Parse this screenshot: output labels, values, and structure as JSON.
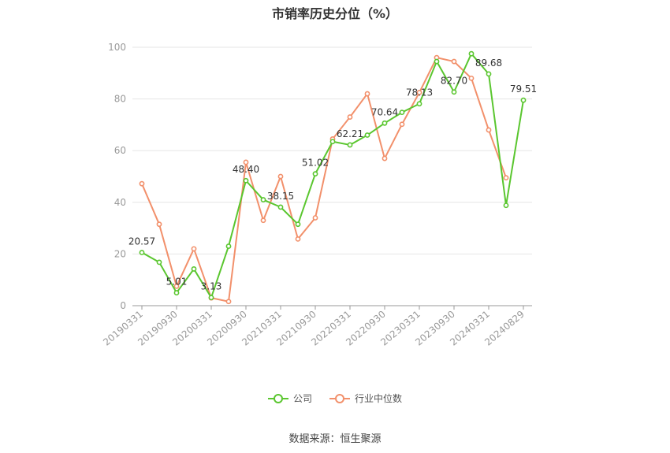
{
  "chart_data": {
    "type": "line",
    "title": "市销率历史分位（%）",
    "source": "数据来源：恒生聚源",
    "ylim": [
      0,
      100
    ],
    "yticks": [
      0,
      20,
      40,
      60,
      80,
      100
    ],
    "grid": true,
    "legend_position": "bottom",
    "xtick_labels": [
      "20190331",
      "20190930",
      "20200331",
      "20200930",
      "20210331",
      "20210930",
      "20220331",
      "20220930",
      "20230331",
      "20230930",
      "20240331",
      "20240829"
    ],
    "x": [
      "20190331",
      "20190630",
      "20190930",
      "20191231",
      "20200331",
      "20200630",
      "20200930",
      "20201231",
      "20210331",
      "20210630",
      "20210930",
      "20211231",
      "20220331",
      "20220630",
      "20220930",
      "20221231",
      "20230331",
      "20230630",
      "20230930",
      "20231231",
      "20240331",
      "20240630",
      "20240829"
    ],
    "series": [
      {
        "name": "公司",
        "color": "#5ac62f",
        "values": [
          20.57,
          16.8,
          5.01,
          14.2,
          3.13,
          23.0,
          48.4,
          41.0,
          38.15,
          31.5,
          51.02,
          63.5,
          62.21,
          66.0,
          70.64,
          74.8,
          78.13,
          94.5,
          82.7,
          97.5,
          89.68,
          38.8,
          79.51
        ]
      },
      {
        "name": "行业中位数",
        "color": "#f2906b",
        "values": [
          47.2,
          31.5,
          7.5,
          22.0,
          3.0,
          1.6,
          55.5,
          33.0,
          50.0,
          25.8,
          34.0,
          64.5,
          73.0,
          82.0,
          57.0,
          70.2,
          82.5,
          96.0,
          94.5,
          88.0,
          68.0,
          49.5,
          null
        ]
      }
    ],
    "data_labels": [
      {
        "index": 0,
        "text": "20.57"
      },
      {
        "index": 2,
        "text": "5.01"
      },
      {
        "index": 4,
        "text": "3.13"
      },
      {
        "index": 6,
        "text": "48.40"
      },
      {
        "index": 8,
        "text": "38.15"
      },
      {
        "index": 10,
        "text": "51.02"
      },
      {
        "index": 12,
        "text": "62.21"
      },
      {
        "index": 14,
        "text": "70.64"
      },
      {
        "index": 16,
        "text": "78.13"
      },
      {
        "index": 18,
        "text": "82.70"
      },
      {
        "index": 20,
        "text": "89.68"
      },
      {
        "index": 22,
        "text": "79.51"
      }
    ]
  }
}
